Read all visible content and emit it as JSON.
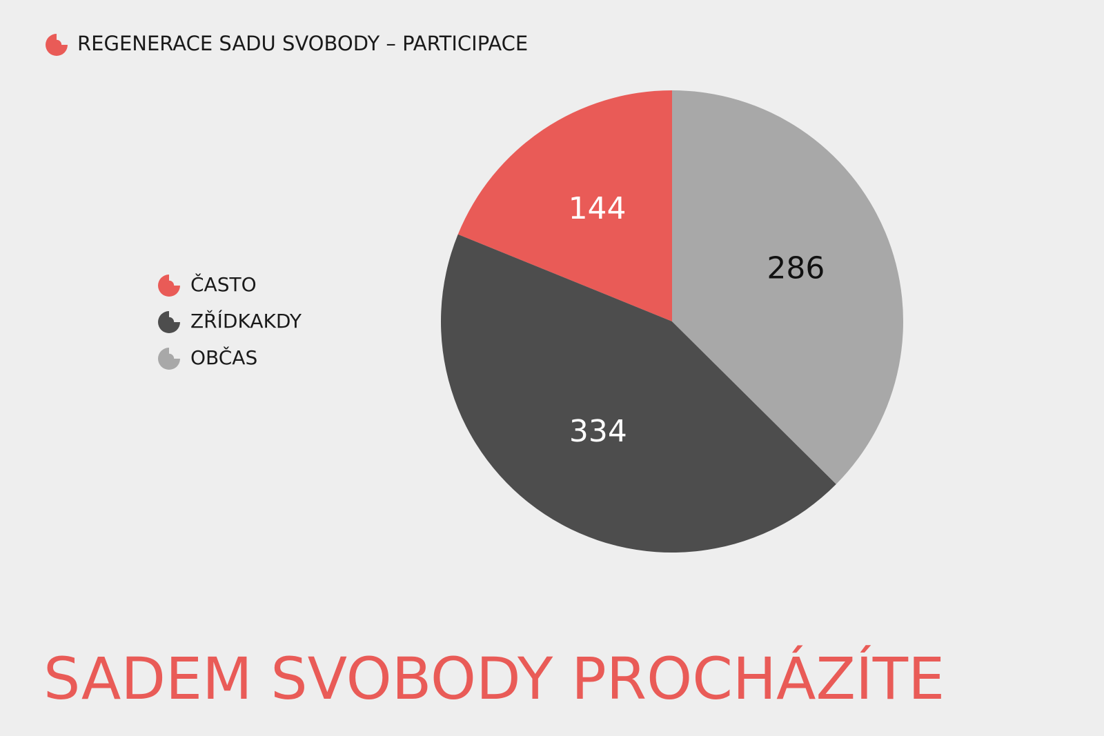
{
  "chart_data": {
    "type": "pie",
    "subtitle": "REGENERACE SADU SVOBODY – PARTICIPACE",
    "title": "SADEM SVOBODY PROCHÁZÍTE",
    "series": [
      {
        "name": "ČASTO",
        "color": "#e95b57",
        "values": [
          144
        ]
      },
      {
        "name": "ZŘÍDKAKDY",
        "color": "#4d4d4d",
        "values": [
          334
        ]
      },
      {
        "name": "OBČAS",
        "color": "#a8a8a8",
        "values": [
          286
        ]
      }
    ]
  }
}
